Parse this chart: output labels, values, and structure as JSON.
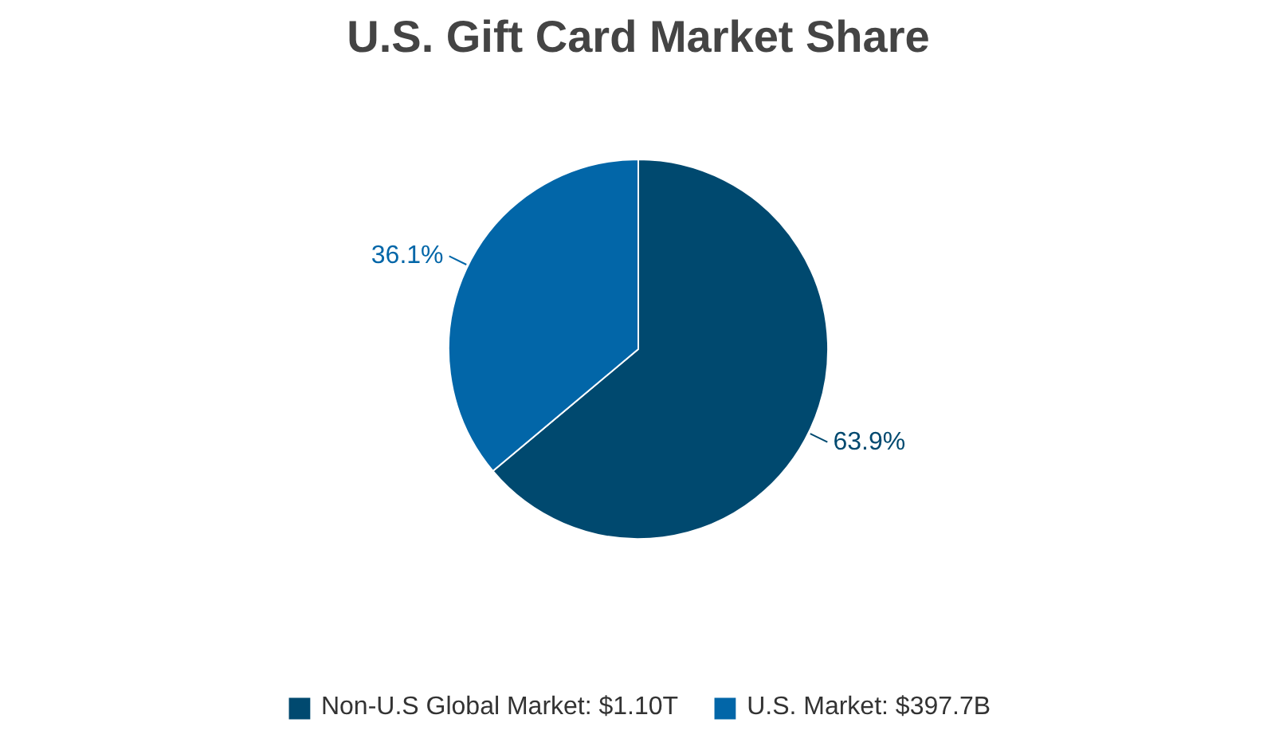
{
  "chart_data": {
    "type": "pie",
    "title": "U.S. Gift Card Market Share",
    "categories": [
      "Non-U.S Global Market: $1.10T",
      "U.S. Market: $397.7B"
    ],
    "values": [
      63.9,
      36.1
    ],
    "colors": [
      "#00496f",
      "#0266a8"
    ],
    "value_labels": [
      "63.9%",
      "36.1%"
    ],
    "legend": "bottom"
  }
}
